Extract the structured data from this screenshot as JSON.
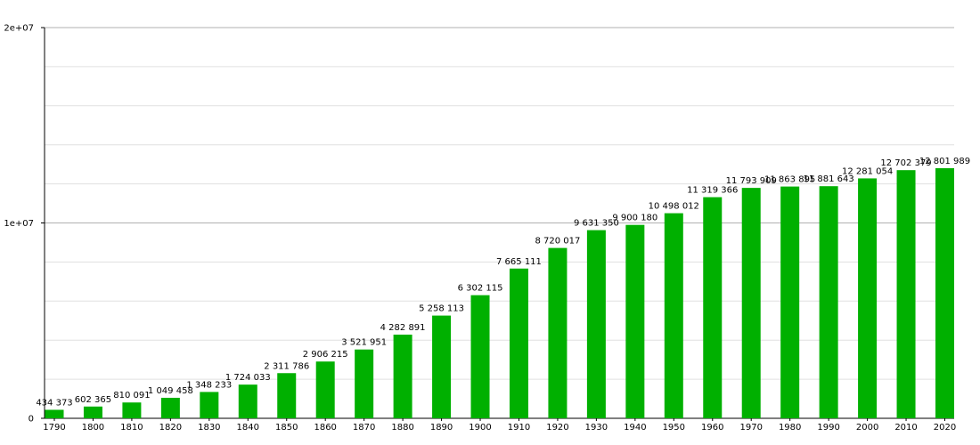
{
  "chart_data": {
    "type": "bar",
    "categories": [
      "1790",
      "1800",
      "1810",
      "1820",
      "1830",
      "1840",
      "1850",
      "1860",
      "1870",
      "1880",
      "1890",
      "1900",
      "1910",
      "1920",
      "1930",
      "1940",
      "1950",
      "1960",
      "1970",
      "1980",
      "1990",
      "2000",
      "2010",
      "2020"
    ],
    "values": [
      434373,
      602365,
      810091,
      1049458,
      1348233,
      1724033,
      2311786,
      2906215,
      3521951,
      4282891,
      5258113,
      6302115,
      7665111,
      8720017,
      9631350,
      9900180,
      10498012,
      11319366,
      11793909,
      11863895,
      11881643,
      12281054,
      12702379,
      12801989
    ],
    "value_labels": [
      "434 373",
      "602 365",
      "810 091",
      "1 049 458",
      "1 348 233",
      "1 724 033",
      "2 311 786",
      "2 906 215",
      "3 521 951",
      "4 282 891",
      "5 258 113",
      "6 302 115",
      "7 665 111",
      "8 720 017",
      "9 631 350",
      "9 900 180",
      "10 498 012",
      "11 319 366",
      "11 793 909",
      "11 863 895",
      "11 881 643",
      "12 281 054",
      "12 702 379",
      "12 801 989"
    ],
    "ylim": [
      0,
      20000000
    ],
    "yticks": [
      0,
      10000000,
      20000000
    ],
    "ytick_labels": [
      "0",
      "1e+07",
      "2e+07"
    ],
    "minor_grid_step": 2000000,
    "grid": true,
    "colors": {
      "bar": "#00b000",
      "major_grid": "#b0b0b0",
      "minor_grid": "#e0e0e0",
      "axis": "#000000"
    }
  }
}
